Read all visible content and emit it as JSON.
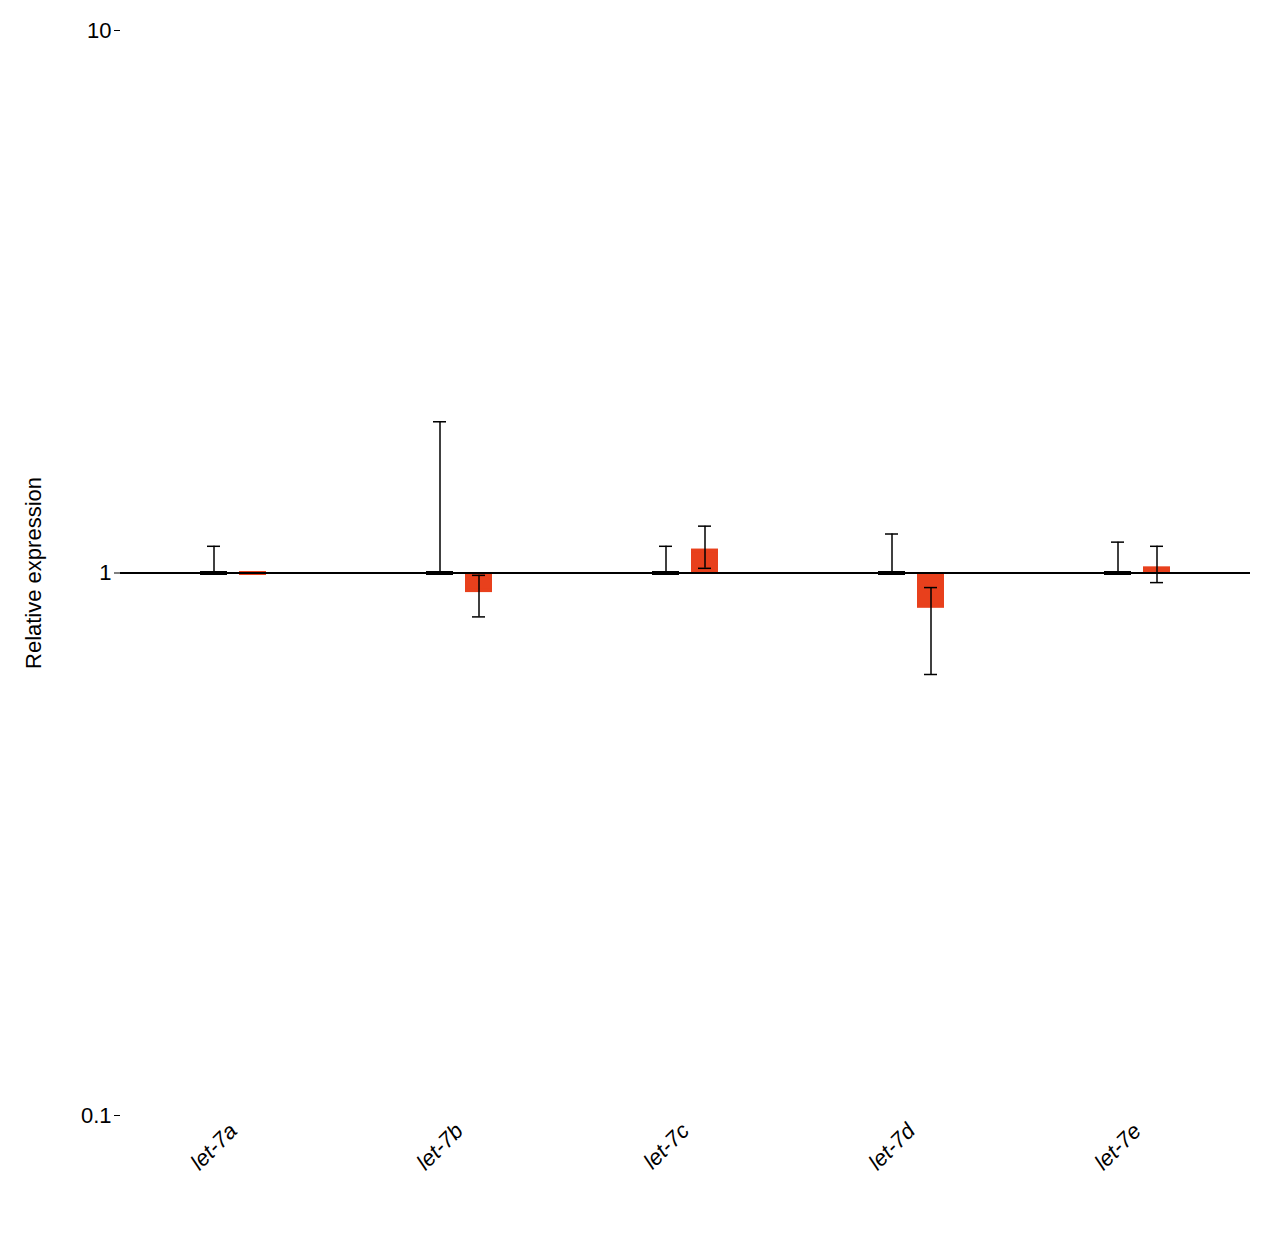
{
  "chart_data": {
    "type": "bar",
    "categories": [
      "let-7a",
      "let-7b",
      "let-7c",
      "let-7d",
      "let-7e"
    ],
    "ylabel": "Relative expression",
    "log": "y",
    "ylim": [
      0.1,
      10
    ],
    "yticks": [
      0.1,
      1,
      10
    ],
    "baseline": 1.0,
    "grid": false,
    "series": [
      {
        "color": "#000000",
        "values": [
          1.0,
          1.0,
          1.0,
          1.0,
          1.0
        ],
        "err_up": [
          0.12,
          0.9,
          0.12,
          0.18,
          0.14
        ],
        "err_dn": [
          0.0,
          0.0,
          0.0,
          0.0,
          0.0
        ]
      },
      {
        "color": "#e8401c",
        "values": [
          1.0,
          0.93,
          1.1,
          0.87,
          1.02
        ],
        "err_up": [
          0.0,
          0.06,
          0.12,
          0.07,
          0.1
        ],
        "err_dn": [
          0.0,
          0.1,
          0.08,
          0.22,
          0.06
        ]
      }
    ]
  }
}
